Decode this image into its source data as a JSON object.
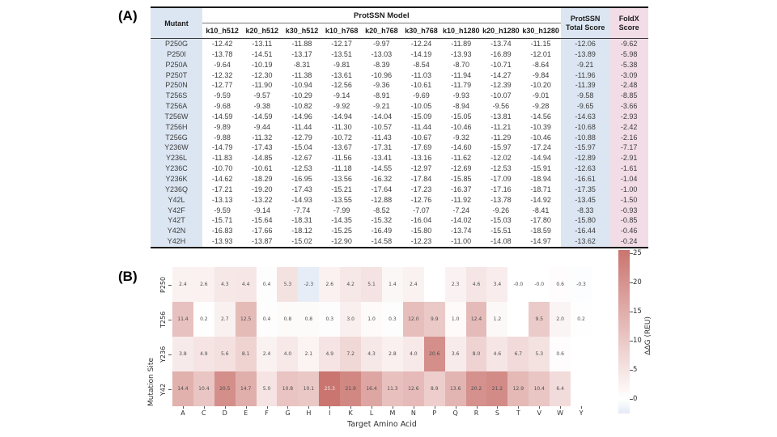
{
  "panel_a": {
    "label": "(A)"
  },
  "panel_b": {
    "label": "(B)"
  },
  "colors": {
    "header_blue": "#dce6f2",
    "header_pink": "#f2dce6",
    "heat_max_red": "#ca746f",
    "heat_neg_blue": "#e4ebf5",
    "border_dark": "#1a1a1a"
  },
  "chart_data": [
    {
      "type": "table",
      "name": "protssn-mutant-scores",
      "col_mutant": "Mutant",
      "header_group": "ProtSSN Model",
      "col_total": [
        "ProtSSN",
        "Total Score"
      ],
      "col_foldx": [
        "FoldX",
        "Score"
      ],
      "model_columns": [
        "k10_h512",
        "k20_h512",
        "k30_h512",
        "k10_h768",
        "k20_h768",
        "k30_h768",
        "k10_h1280",
        "k20_h1280",
        "k30_h1280"
      ],
      "rows": [
        {
          "mutant": "P250G",
          "scores": [
            "-12.42",
            "-13.11",
            "-11.88",
            "-12.17",
            "-9.97",
            "-12.24",
            "-11.89",
            "-13.74",
            "-11.15"
          ],
          "total": "-12.06",
          "foldx": "-9.62"
        },
        {
          "mutant": "P250I",
          "scores": [
            "-13.78",
            "-14.51",
            "-13.17",
            "-13.51",
            "-13.03",
            "-14.19",
            "-13.93",
            "-16.89",
            "-12.01"
          ],
          "total": "-13.89",
          "foldx": "-5.98"
        },
        {
          "mutant": "P250A",
          "scores": [
            "-9.64",
            "-10.19",
            "-8.31",
            "-9.81",
            "-8.39",
            "-8.54",
            "-8.70",
            "-10.71",
            "-8.64"
          ],
          "total": "-9.21",
          "foldx": "-5.38"
        },
        {
          "mutant": "P250T",
          "scores": [
            "-12.32",
            "-12.30",
            "-11.38",
            "-13.61",
            "-10.96",
            "-11.03",
            "-11.94",
            "-14.27",
            "-9.84"
          ],
          "total": "-11.96",
          "foldx": "-3.09"
        },
        {
          "mutant": "P250N",
          "scores": [
            "-12.77",
            "-11.90",
            "-10.94",
            "-12.56",
            "-9.36",
            "-10.61",
            "-11.79",
            "-12.39",
            "-10.20"
          ],
          "total": "-11.39",
          "foldx": "-2.48"
        },
        {
          "mutant": "T256S",
          "scores": [
            "-9.59",
            "-9.57",
            "-10.29",
            "-9.14",
            "-8.91",
            "-9.69",
            "-9.93",
            "-10.07",
            "-9.01"
          ],
          "total": "-9.58",
          "foldx": "-8.85"
        },
        {
          "mutant": "T256A",
          "scores": [
            "-9.68",
            "-9.38",
            "-10.82",
            "-9.92",
            "-9.21",
            "-10.05",
            "-8.94",
            "-9.56",
            "-9.28"
          ],
          "total": "-9.65",
          "foldx": "-3.66"
        },
        {
          "mutant": "T256W",
          "scores": [
            "-14.59",
            "-14.59",
            "-14.96",
            "-14.94",
            "-14.04",
            "-15.09",
            "-15.05",
            "-13.81",
            "-14.56"
          ],
          "total": "-14.63",
          "foldx": "-2.93"
        },
        {
          "mutant": "T256H",
          "scores": [
            "-9.89",
            "-9.44",
            "-11.44",
            "-11.30",
            "-10.57",
            "-11.44",
            "-10.46",
            "-11.21",
            "-10.39"
          ],
          "total": "-10.68",
          "foldx": "-2.42"
        },
        {
          "mutant": "T256G",
          "scores": [
            "-9.88",
            "-11.32",
            "-12.79",
            "-10.72",
            "-11.43",
            "-10.67",
            "-9.32",
            "-11.29",
            "-10.46"
          ],
          "total": "-10.88",
          "foldx": "-2.16"
        },
        {
          "mutant": "Y236W",
          "scores": [
            "-14.79",
            "-17.43",
            "-15.04",
            "-13.67",
            "-17.31",
            "-17.69",
            "-14.60",
            "-15.97",
            "-17.24"
          ],
          "total": "-15.97",
          "foldx": "-7.17"
        },
        {
          "mutant": "Y236L",
          "scores": [
            "-11.83",
            "-14.85",
            "-12.67",
            "-11.56",
            "-13.41",
            "-13.16",
            "-11.62",
            "-12.02",
            "-14.94"
          ],
          "total": "-12.89",
          "foldx": "-2.91"
        },
        {
          "mutant": "Y236C",
          "scores": [
            "-10.70",
            "-10.61",
            "-12.53",
            "-11.18",
            "-14.55",
            "-12.97",
            "-12.69",
            "-12.53",
            "-15.91"
          ],
          "total": "-12.63",
          "foldx": "-1.61"
        },
        {
          "mutant": "Y236K",
          "scores": [
            "-14.62",
            "-18.29",
            "-16.95",
            "-13.56",
            "-16.32",
            "-17.84",
            "-15.85",
            "-17.09",
            "-18.94"
          ],
          "total": "-16.61",
          "foldx": "-1.04"
        },
        {
          "mutant": "Y236Q",
          "scores": [
            "-17.21",
            "-19.20",
            "-17.43",
            "-15.21",
            "-17.64",
            "-17.23",
            "-16.37",
            "-17.16",
            "-18.71"
          ],
          "total": "-17.35",
          "foldx": "-1.00"
        },
        {
          "mutant": "Y42L",
          "scores": [
            "-13.13",
            "-13.22",
            "-14.93",
            "-13.55",
            "-12.88",
            "-12.76",
            "-11.92",
            "-13.78",
            "-14.92"
          ],
          "total": "-13.45",
          "foldx": "-1.50"
        },
        {
          "mutant": "Y42F",
          "scores": [
            "-9.59",
            "-9.14",
            "-7.74",
            "-7.99",
            "-8.52",
            "-7.07",
            "-7.24",
            "-9.26",
            "-8.41"
          ],
          "total": "-8.33",
          "foldx": "-0.93"
        },
        {
          "mutant": "Y42T",
          "scores": [
            "-15.71",
            "-15.64",
            "-18.31",
            "-14.35",
            "-15.32",
            "-16.04",
            "-14.02",
            "-15.03",
            "-17.80"
          ],
          "total": "-15.80",
          "foldx": "-0.85"
        },
        {
          "mutant": "Y42N",
          "scores": [
            "-16.83",
            "-17.66",
            "-18.12",
            "-15.25",
            "-16.49",
            "-15.80",
            "-13.74",
            "-15.51",
            "-18.59"
          ],
          "total": "-16.44",
          "foldx": "-0.46"
        },
        {
          "mutant": "Y42H",
          "scores": [
            "-13.93",
            "-13.87",
            "-15.02",
            "-12.90",
            "-14.58",
            "-12.23",
            "-11.00",
            "-14.08",
            "-14.97"
          ],
          "total": "-13.62",
          "foldx": "-0.24"
        }
      ]
    },
    {
      "type": "heatmap",
      "name": "ddg-heatmap",
      "x_categories": [
        "A",
        "C",
        "D",
        "E",
        "F",
        "G",
        "H",
        "I",
        "K",
        "L",
        "M",
        "N",
        "P",
        "Q",
        "R",
        "S",
        "T",
        "V",
        "W",
        "Y"
      ],
      "y_categories": [
        "P250",
        "T256",
        "Y236",
        "Y42"
      ],
      "xlabel": "Target Amino Acid",
      "ylabel": "Mutation Site",
      "colorbar_label": "ΔΔG (REU)",
      "colorbar_ticks": [
        25,
        20,
        15,
        10,
        5,
        0
      ],
      "color_range": [
        -2.5,
        25.5
      ],
      "cells": [
        [
          "2.4",
          "2.6",
          "4.3",
          "4.4",
          "0.4",
          "5.3",
          "-2.3",
          "2.6",
          "4.2",
          "5.1",
          "1.4",
          "2.4",
          null,
          "2.3",
          "4.6",
          "3.4",
          "-0.0",
          "-0.0",
          "0.6",
          "-0.3"
        ],
        [
          "11.4",
          "0.2",
          "2.7",
          "12.5",
          "0.4",
          "0.8",
          "0.8",
          "0.3",
          "3.0",
          "1.0",
          "0.3",
          "12.0",
          "9.9",
          "1.0",
          "12.4",
          "1.2",
          null,
          "9.5",
          "2.0",
          "0.2"
        ],
        [
          "3.8",
          "4.9",
          "5.6",
          "8.1",
          "2.4",
          "4.0",
          "2.1",
          "4.9",
          "7.2",
          "4.3",
          "2.8",
          "4.0",
          "20.6",
          "3.6",
          "8.0",
          "4.6",
          "6.7",
          "5.3",
          "0.6",
          null
        ],
        [
          "14.4",
          "10.4",
          "20.5",
          "14.7",
          "5.0",
          "10.8",
          "10.1",
          "25.3",
          "21.9",
          "16.4",
          "11.3",
          "12.6",
          "8.9",
          "13.6",
          "20.2",
          "21.2",
          "12.9",
          "10.4",
          "6.4",
          null
        ]
      ]
    }
  ]
}
